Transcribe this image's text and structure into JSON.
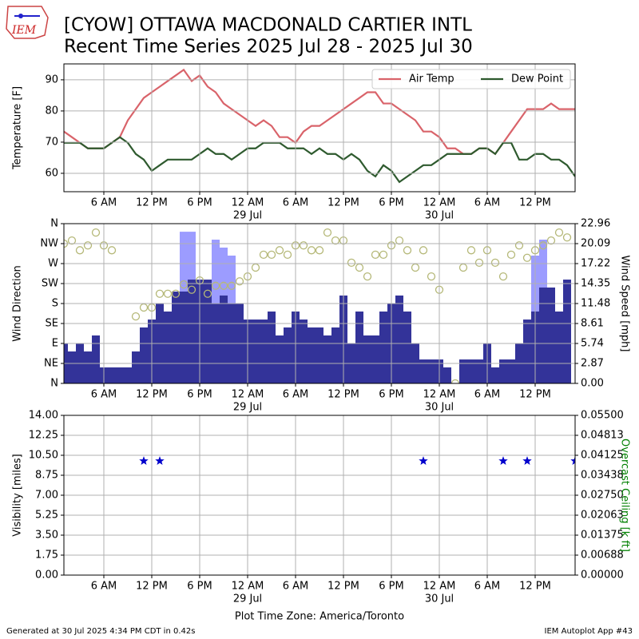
{
  "logo": "IEM",
  "title": "[CYOW] OTTAWA MACDONALD CARTIER INTL",
  "subtitle": "Recent Time Series 2025 Jul 28 - 2025 Jul 30",
  "footer_left": "Generated at 30 Jul 2025 4:34 PM CDT in 0.42s",
  "footer_right": "IEM Autoplot App #43",
  "chart_data": [
    {
      "type": "line",
      "ylabel": "Temperature [F]",
      "grid": true,
      "legend": "upper right",
      "xlim": [
        1,
        65
      ],
      "ylim": [
        54.1,
        95.1
      ],
      "yticks": [
        60,
        70,
        80,
        90
      ],
      "xticks": [
        {
          "value": 6,
          "label": "6 AM"
        },
        {
          "value": 12,
          "label": "12 PM"
        },
        {
          "value": 18,
          "label": "6 PM"
        },
        {
          "value": 24,
          "label": "12 AM"
        },
        {
          "value": 30,
          "label": "6 AM"
        },
        {
          "value": 36,
          "label": "12 PM"
        },
        {
          "value": 42,
          "label": "6 PM"
        },
        {
          "value": 48,
          "label": "12 AM"
        },
        {
          "value": 54,
          "label": "6 AM"
        },
        {
          "value": 60,
          "label": "12 PM"
        }
      ],
      "date_labels": [
        {
          "value": 24,
          "label": "29 Jul"
        },
        {
          "value": 48,
          "label": "30 Jul"
        }
      ],
      "x": [
        1,
        2,
        3,
        4,
        5,
        6,
        7,
        8,
        9,
        10,
        11,
        12,
        13,
        14,
        15,
        16,
        17,
        18,
        19,
        20,
        21,
        22,
        23,
        24,
        25,
        26,
        27,
        28,
        29,
        30,
        31,
        32,
        33,
        34,
        35,
        36,
        37,
        38,
        39,
        40,
        41,
        42,
        43,
        44,
        45,
        46,
        47,
        48,
        49,
        50,
        51,
        52,
        53,
        54,
        55,
        56,
        57,
        58,
        59,
        60,
        61,
        62,
        63,
        64,
        65
      ],
      "series": [
        {
          "name": "Air Temp",
          "color": "#d9636a",
          "values": [
            73.4,
            71.6,
            69.8,
            68,
            68,
            68,
            69.8,
            71.6,
            77,
            80.6,
            84.2,
            86,
            87.8,
            89.6,
            91.4,
            93.2,
            89.6,
            91.4,
            87.8,
            86,
            82.4,
            80.6,
            78.8,
            77,
            75.2,
            77,
            75.2,
            71.6,
            71.6,
            69.8,
            73.4,
            75.2,
            75.2,
            77,
            78.8,
            80.6,
            82.4,
            84.2,
            86,
            86,
            82.4,
            82.4,
            80.6,
            78.8,
            77,
            73.4,
            73.4,
            71.6,
            68,
            68,
            66.2,
            66.2,
            68,
            68,
            66.2,
            69.8,
            73.4,
            77,
            80.6,
            80.6,
            80.6,
            82.4,
            80.6,
            80.6,
            80.6
          ]
        },
        {
          "name": "Dew Point",
          "color": "#2e5a2e",
          "values": [
            69.8,
            69.8,
            69.8,
            68,
            68,
            68,
            69.8,
            71.6,
            69.8,
            66.2,
            64.4,
            60.8,
            62.6,
            64.4,
            64.4,
            64.4,
            64.4,
            66.2,
            68,
            66.2,
            66.2,
            64.4,
            66.2,
            68,
            68,
            69.8,
            69.8,
            69.8,
            68,
            68,
            68,
            66.2,
            68,
            66.2,
            66.2,
            64.4,
            66.2,
            64.4,
            60.8,
            59,
            62.6,
            60.8,
            57.2,
            59,
            60.8,
            62.6,
            62.6,
            64.4,
            66.2,
            66.2,
            66.2,
            66.2,
            68,
            68,
            66.2,
            69.8,
            69.8,
            64.4,
            64.4,
            66.2,
            66.2,
            64.4,
            64.4,
            62.6,
            59
          ]
        }
      ]
    },
    {
      "type": "bar",
      "ylabel": "Wind Direction",
      "y2label": "Wind Speed [mph]",
      "grid": true,
      "xlim": [
        1,
        65
      ],
      "ylim": [
        0,
        360
      ],
      "yticks": [
        {
          "value": 0,
          "label": "N"
        },
        {
          "value": 45,
          "label": "NE"
        },
        {
          "value": 90,
          "label": "E"
        },
        {
          "value": 135,
          "label": "SE"
        },
        {
          "value": 180,
          "label": "S"
        },
        {
          "value": 225,
          "label": "SW"
        },
        {
          "value": 270,
          "label": "W"
        },
        {
          "value": 315,
          "label": "NW"
        },
        {
          "value": 360,
          "label": "N"
        }
      ],
      "y2lim": [
        0,
        22.96
      ],
      "y2ticks": [
        {
          "value": 0,
          "label": "0.00"
        },
        2.87,
        5.74,
        8.61,
        11.48,
        14.35,
        17.22,
        20.09,
        22.96
      ],
      "xticks": [
        {
          "value": 6,
          "label": "6 AM"
        },
        {
          "value": 12,
          "label": "12 PM"
        },
        {
          "value": 18,
          "label": "6 PM"
        },
        {
          "value": 24,
          "label": "12 AM"
        },
        {
          "value": 30,
          "label": "6 AM"
        },
        {
          "value": 36,
          "label": "12 PM"
        },
        {
          "value": 42,
          "label": "6 PM"
        },
        {
          "value": 48,
          "label": "12 AM"
        },
        {
          "value": 54,
          "label": "6 AM"
        },
        {
          "value": 60,
          "label": "12 PM"
        }
      ],
      "date_labels": [
        {
          "value": 24,
          "label": "29 Jul"
        },
        {
          "value": 48,
          "label": "30 Jul"
        }
      ],
      "x": [
        1,
        2,
        3,
        4,
        5,
        6,
        7,
        8,
        9,
        10,
        11,
        12,
        13,
        14,
        15,
        16,
        17,
        18,
        19,
        20,
        21,
        22,
        23,
        24,
        25,
        26,
        27,
        28,
        29,
        30,
        31,
        32,
        33,
        34,
        35,
        36,
        37,
        38,
        39,
        40,
        41,
        42,
        43,
        44,
        45,
        46,
        47,
        48,
        49,
        50,
        51,
        52,
        53,
        54,
        55,
        56,
        57,
        58,
        59,
        60,
        61,
        62,
        63,
        64
      ],
      "series": [
        {
          "kind": "bar",
          "axis": "y2",
          "color": "#9c9cff",
          "values": [
            null,
            null,
            null,
            null,
            null,
            null,
            null,
            null,
            null,
            null,
            null,
            null,
            null,
            null,
            null,
            21.8,
            21.8,
            null,
            null,
            20.66,
            19.52,
            18.37,
            null,
            null,
            null,
            null,
            null,
            null,
            null,
            null,
            null,
            null,
            null,
            null,
            null,
            null,
            null,
            null,
            null,
            null,
            null,
            null,
            null,
            null,
            null,
            null,
            null,
            null,
            null,
            null,
            null,
            null,
            null,
            null,
            null,
            null,
            null,
            null,
            null,
            18.37,
            20.66,
            null,
            null,
            null
          ]
        },
        {
          "kind": "bar",
          "axis": "y2",
          "color": "#333399",
          "values": [
            5.74,
            4.59,
            5.74,
            4.59,
            6.89,
            2.3,
            2.3,
            2.3,
            2.3,
            4.59,
            8.04,
            9.18,
            11.48,
            10.33,
            13.2,
            13.2,
            14.92,
            14.92,
            14.92,
            11.48,
            12.63,
            11.48,
            11.48,
            9.18,
            9.18,
            9.18,
            10.33,
            6.89,
            8.04,
            10.33,
            9.18,
            8.04,
            8.04,
            6.89,
            8.04,
            12.63,
            5.74,
            10.33,
            6.89,
            6.89,
            10.33,
            11.48,
            12.63,
            10.33,
            5.74,
            3.44,
            3.44,
            3.44,
            2.3,
            0,
            3.44,
            3.44,
            3.44,
            5.74,
            2.3,
            3.44,
            3.44,
            5.74,
            9.18,
            10.33,
            13.78,
            13.78,
            10.33,
            14.92
          ]
        },
        {
          "kind": "scatter",
          "axis": "y",
          "marker": "circle",
          "color": "#b5b878",
          "values": [
            315,
            322,
            300,
            311,
            340,
            311,
            300,
            null,
            null,
            151,
            171,
            171,
            202,
            202,
            202,
            223,
            211,
            232,
            202,
            220,
            220,
            220,
            230,
            241,
            261,
            290,
            290,
            300,
            290,
            311,
            311,
            300,
            300,
            340,
            322,
            322,
            272,
            261,
            241,
            290,
            290,
            311,
            322,
            300,
            261,
            300,
            241,
            211,
            null,
            0,
            261,
            300,
            272,
            300,
            272,
            241,
            290,
            311,
            283,
            300,
            311,
            322,
            340,
            329
          ]
        }
      ]
    },
    {
      "type": "scatter",
      "ylabel": "Visibility [miles]",
      "y2label": "Overcast Ceiling [k ft]",
      "y2label_color": "#008000",
      "grid": true,
      "xlabel": "Plot Time Zone: America/Toronto",
      "xlim": [
        1,
        65
      ],
      "ylim": [
        0,
        14
      ],
      "yticks": [
        {
          "value": 0,
          "label": "0.00"
        },
        1.75,
        {
          "value": 3.5,
          "label": "3.50"
        },
        5.25,
        {
          "value": 7,
          "label": "7.00"
        },
        8.75,
        {
          "value": 10.5,
          "label": "10.50"
        },
        12.25,
        {
          "value": 14,
          "label": "14.00"
        }
      ],
      "y2lim": [
        0,
        0.055
      ],
      "y2ticks": [
        {
          "value": 0,
          "label": "0.00000"
        },
        {
          "value": 0.006875,
          "label": "0.00688"
        },
        {
          "value": 0.01375,
          "label": "0.01375"
        },
        {
          "value": 0.020625,
          "label": "0.02063"
        },
        {
          "value": 0.0275,
          "label": "0.02750"
        },
        {
          "value": 0.034375,
          "label": "0.03438"
        },
        {
          "value": 0.04125,
          "label": "0.04125"
        },
        {
          "value": 0.048125,
          "label": "0.04813"
        },
        {
          "value": 0.055,
          "label": "0.05500"
        }
      ],
      "xticks": [
        {
          "value": 6,
          "label": "6 AM"
        },
        {
          "value": 12,
          "label": "12 PM"
        },
        {
          "value": 18,
          "label": "6 PM"
        },
        {
          "value": 24,
          "label": "12 AM"
        },
        {
          "value": 30,
          "label": "6 AM"
        },
        {
          "value": 36,
          "label": "12 PM"
        },
        {
          "value": 42,
          "label": "6 PM"
        },
        {
          "value": 48,
          "label": "12 AM"
        },
        {
          "value": 54,
          "label": "6 AM"
        },
        {
          "value": 60,
          "label": "12 PM"
        }
      ],
      "date_labels": [
        {
          "value": 24,
          "label": "29 Jul"
        },
        {
          "value": 48,
          "label": "30 Jul"
        }
      ],
      "series": [
        {
          "kind": "scatter",
          "axis": "y",
          "marker": "star",
          "color": "#0000cc",
          "x": [
            11,
            13,
            46,
            56,
            59,
            65
          ],
          "values": [
            10,
            10,
            10,
            10,
            10,
            10
          ]
        }
      ]
    }
  ]
}
